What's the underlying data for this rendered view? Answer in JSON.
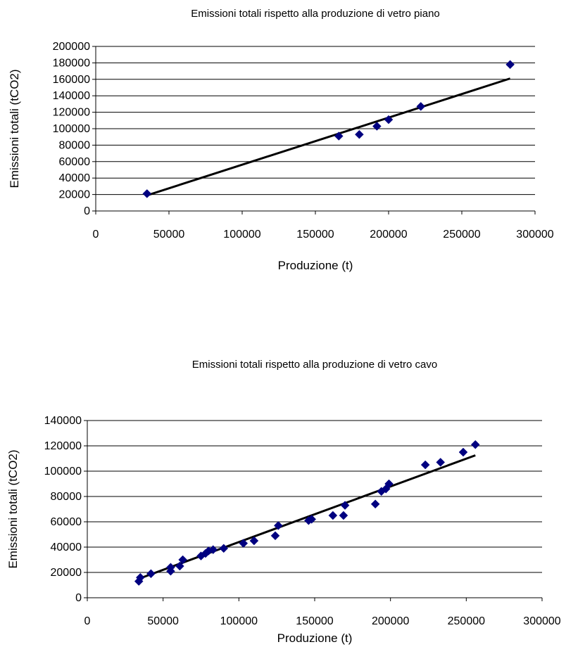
{
  "chart_data": [
    {
      "type": "scatter",
      "title": "Emissioni totali rispetto alla produzione di vetro piano",
      "xlabel": "Produzione (t)",
      "ylabel": "Emissioni totali (tCO2)",
      "xlim": [
        0,
        300000
      ],
      "ylim": [
        0,
        200000
      ],
      "xticks": [
        0,
        50000,
        100000,
        150000,
        200000,
        250000,
        300000
      ],
      "yticks": [
        0,
        20000,
        40000,
        60000,
        80000,
        100000,
        120000,
        140000,
        160000,
        180000,
        200000
      ],
      "xtick_labels": [
        "0",
        "50000",
        "100000",
        "150000",
        "200000",
        "250000",
        "300000"
      ],
      "ytick_labels": [
        "0",
        "20000",
        "40000",
        "60000",
        "80000",
        "100000",
        "120000",
        "140000",
        "160000",
        "180000",
        "200000"
      ],
      "grid": "horizontal",
      "marker_color": "#000080",
      "series": [
        {
          "x": [
            35000,
            166000,
            180000,
            192000,
            200000,
            222000,
            283000
          ],
          "y": [
            21000,
            91000,
            93000,
            103000,
            111000,
            127000,
            178000
          ]
        }
      ],
      "trendline": {
        "x": [
          35000,
          283000
        ],
        "y": [
          19000,
          161000
        ]
      }
    },
    {
      "type": "scatter",
      "title": "Emissioni totali rispetto alla produzione di vetro cavo",
      "xlabel": "Produzione (t)",
      "ylabel": "Emissioni totali (tCO2)",
      "xlim": [
        0,
        300000
      ],
      "ylim": [
        0,
        140000
      ],
      "xticks": [
        0,
        50000,
        100000,
        150000,
        200000,
        250000,
        300000
      ],
      "yticks": [
        0,
        20000,
        40000,
        60000,
        80000,
        100000,
        120000,
        140000
      ],
      "xtick_labels": [
        "0",
        "50000",
        "100000",
        "150000",
        "200000",
        "250000",
        "300000"
      ],
      "ytick_labels": [
        "0",
        "20000",
        "40000",
        "60000",
        "80000",
        "100000",
        "120000",
        "140000"
      ],
      "grid": "horizontal",
      "marker_color": "#000080",
      "series": [
        {
          "x": [
            34000,
            35000,
            42000,
            55000,
            55000,
            61000,
            63000,
            75000,
            78000,
            80000,
            83000,
            90000,
            103000,
            110000,
            124000,
            126000,
            146000,
            148000,
            162000,
            169000,
            170000,
            190000,
            194000,
            197000,
            199000,
            223000,
            233000,
            248000,
            256000
          ],
          "y": [
            13000,
            16000,
            19000,
            21000,
            24000,
            25000,
            30000,
            33000,
            35000,
            37000,
            38000,
            39000,
            43000,
            45000,
            49000,
            57000,
            61000,
            62000,
            65000,
            65000,
            73000,
            74000,
            84000,
            86000,
            90000,
            105000,
            107000,
            115000,
            121000
          ]
        }
      ],
      "trendline": {
        "x": [
          34000,
          256000
        ],
        "y": [
          15000,
          112500
        ]
      }
    }
  ]
}
